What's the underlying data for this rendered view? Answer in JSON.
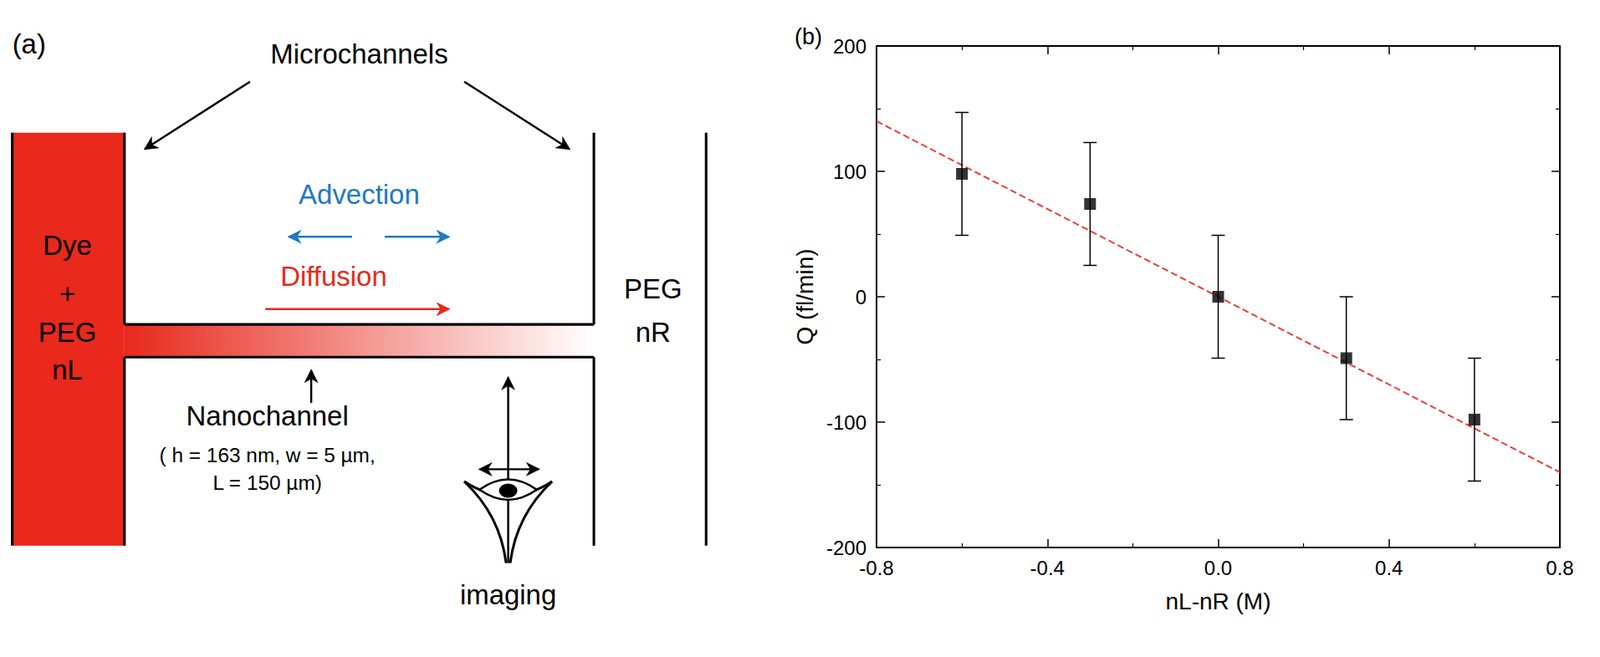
{
  "diagram": {
    "label": "(a)",
    "microchannels": "Microchannels",
    "advection": "Advection",
    "diffusion": "Diffusion",
    "left_reservoir": [
      "Dye",
      "+",
      "PEG",
      "nL"
    ],
    "right_reservoir": [
      "PEG",
      "nR"
    ],
    "nanochannel": {
      "title": "Nanochannel",
      "dimensions": [
        "( h = 163 nm, w = 5 µm,",
        "L = 150 µm)"
      ]
    },
    "imaging": "imaging"
  },
  "chart_data": {
    "panel_label": "(b)",
    "type": "scatter",
    "x_label": "nL-nR (M)",
    "y_label": "Q (fl/min)",
    "xlim": [
      -0.8,
      0.8
    ],
    "xticks": [
      -0.8,
      -0.4,
      {
        "value": 0,
        "label": "0.0"
      },
      0.4,
      0.8
    ],
    "ylim": [
      -200,
      200
    ],
    "yticks": [
      -200,
      -100,
      0,
      100,
      200
    ],
    "grid": false,
    "series": [
      {
        "type": "scatter",
        "x": [
          -0.6,
          -0.3,
          0,
          0.3,
          0.6
        ],
        "values": [
          98,
          74,
          0,
          -49,
          -98
        ],
        "errors": [
          49,
          49,
          49,
          49,
          49
        ],
        "color": "#000000",
        "marker": "square"
      },
      {
        "type": "line",
        "x": [
          -0.8,
          0.8
        ],
        "values": [
          140,
          -140
        ],
        "color": "#e8403f",
        "line_style": "dashed"
      }
    ]
  }
}
